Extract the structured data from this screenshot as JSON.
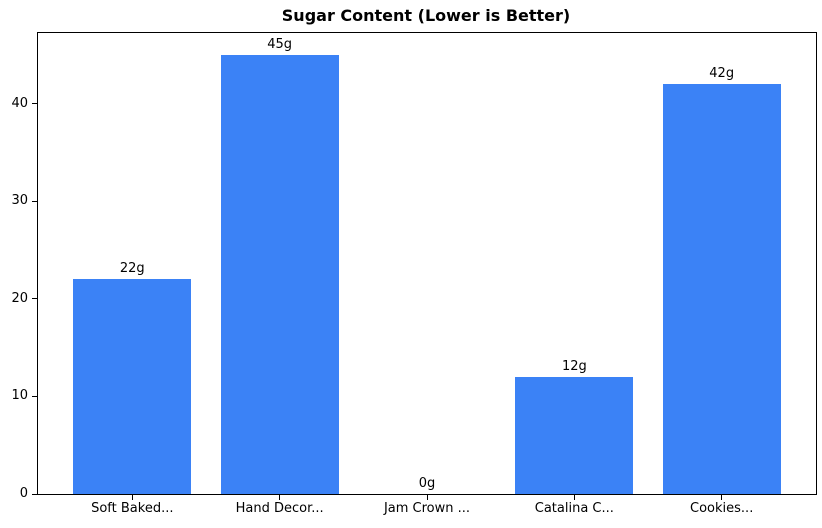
{
  "chart_data": {
    "type": "bar",
    "title": "Sugar Content (Lower is Better)",
    "categories": [
      "Soft Baked...",
      "Hand Decor...",
      "Jam Crown ...",
      "Catalina C...",
      "Cookies..."
    ],
    "values": [
      22,
      45,
      0,
      12,
      42
    ],
    "bar_labels": [
      "22g",
      "45g",
      "0g",
      "12g",
      "42g"
    ],
    "xlabel": "",
    "ylabel": "",
    "yticks": [
      0,
      10,
      20,
      30,
      40
    ],
    "ylim": [
      0,
      47.25
    ],
    "xlim": [
      -0.64,
      4.64
    ],
    "bar_width_units": 0.8,
    "bar_color": "#3b82f6",
    "frame_color": "#000000",
    "text_color": "#000000",
    "background_color": "#ffffff",
    "grid": false,
    "legend": null
  }
}
